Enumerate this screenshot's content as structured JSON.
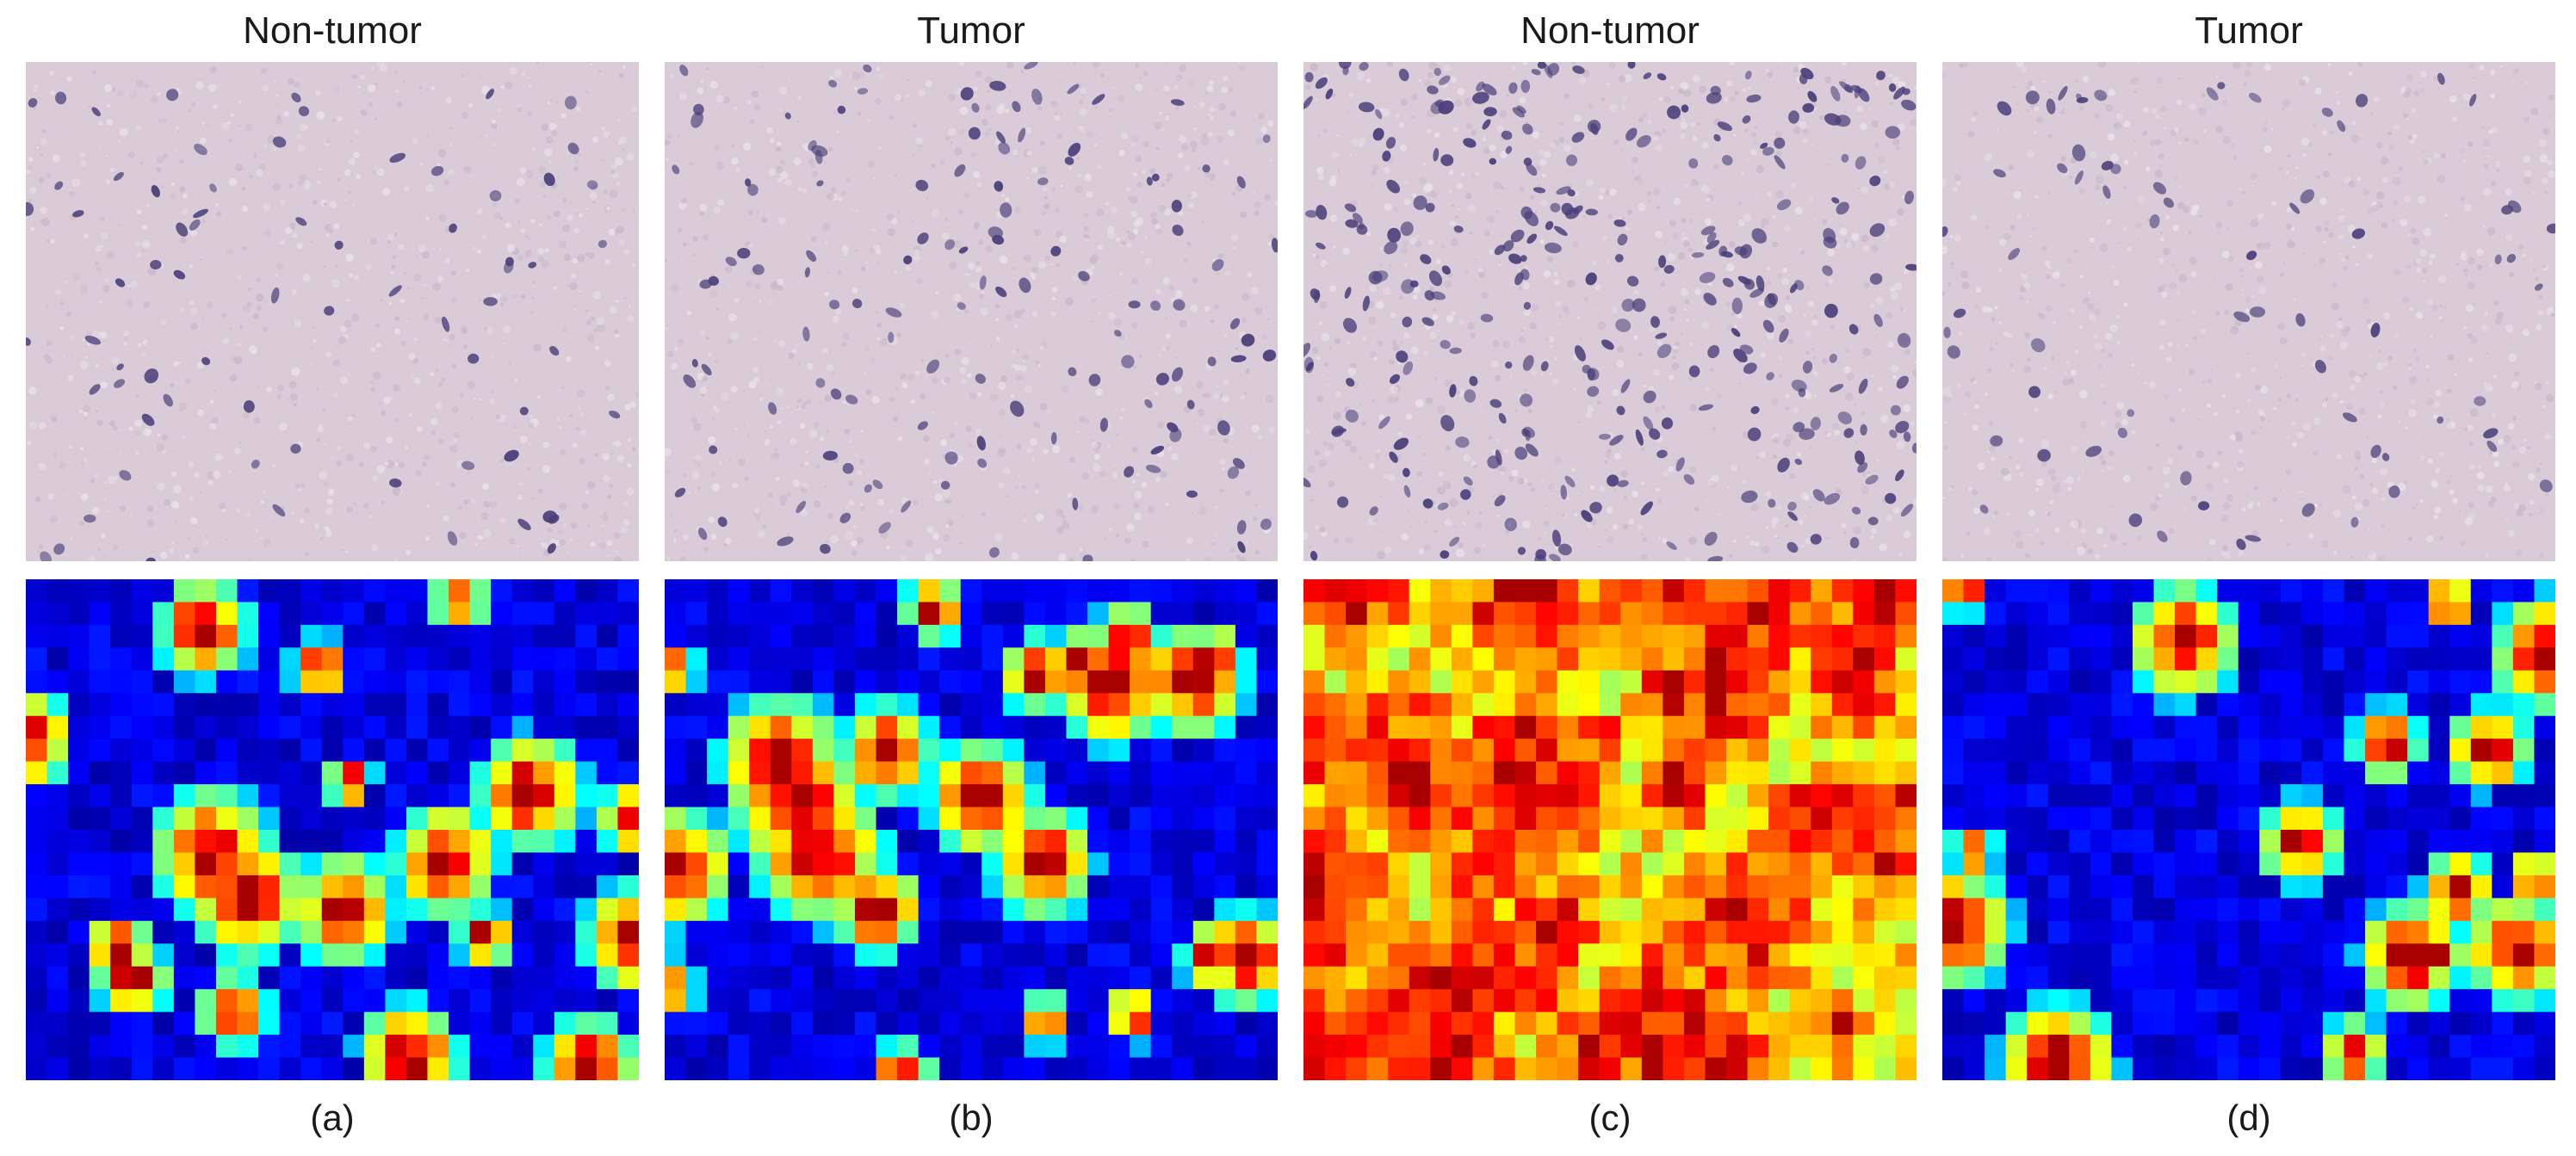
{
  "panels": [
    {
      "title": "Non-tumor",
      "caption": "(a)",
      "nuclei_density": "low",
      "heatmap_coverage": 0.3
    },
    {
      "title": "Tumor",
      "caption": "(b)",
      "nuclei_density": "medium",
      "heatmap_coverage": 0.42
    },
    {
      "title": "Non-tumor",
      "caption": "(c)",
      "nuclei_density": "high",
      "heatmap_coverage": 0.85
    },
    {
      "title": "Tumor",
      "caption": "(d)",
      "nuclei_density": "low",
      "heatmap_coverage": 0.25
    }
  ],
  "colors": {
    "tissue_background": "#d9ccd8",
    "nucleus": "#4a3f7a",
    "heat_low": "#00008f",
    "heat_high": "#7f0000"
  }
}
